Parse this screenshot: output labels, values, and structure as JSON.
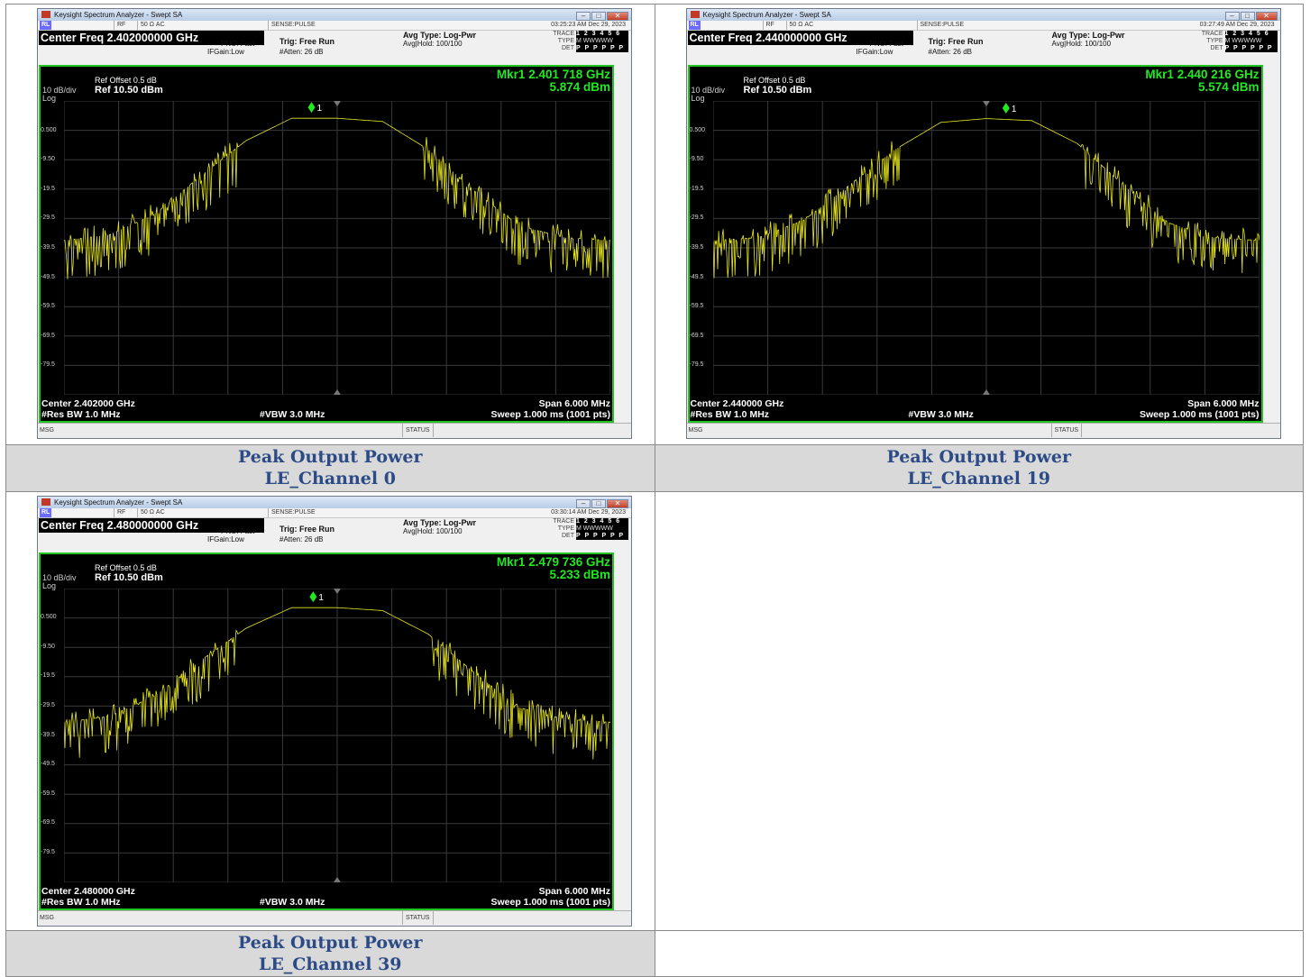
{
  "panels": [
    {
      "window_title": "Keysight Spectrum Analyzer - Swept SA",
      "mode": "RL",
      "input": "RF",
      "impedance": "50 Ω  AC",
      "sense": "SENSE:PULSE",
      "datetime": "03:25:23 AM Dec 29, 2023",
      "center_freq": "Center Freq 2.402000000 GHz",
      "pno": "PNO: Fast",
      "ifgain": "IFGain:Low",
      "trig": "Trig: Free Run",
      "atten": "#Atten: 26 dB",
      "avg_type": "Avg Type: Log-Pwr",
      "avg_hold": "Avg|Hold: 100/100",
      "trace_label": "TRACE",
      "trace_vals": "1 2 3 4 5 6",
      "type_label": "TYPE",
      "type_vals": "M WWWWW",
      "det_label": "DET",
      "det_vals": "P P P P P P",
      "ref_offset": "Ref Offset 0.5 dB",
      "scale": "10 dB/div",
      "scale_type": "Log",
      "ref_level": "Ref 10.50 dBm",
      "marker_freq": "Mkr1 2.401 718 GHz",
      "marker_level": "5.874 dBm",
      "marker_label": "1",
      "y_labels": [
        "0.500",
        "-9.50",
        "-19.5",
        "-29.5",
        "-39.5",
        "-49.5",
        "-59.5",
        "-69.5",
        "-79.5"
      ],
      "center": "Center 2.402000 GHz",
      "rbw": "#Res BW 1.0 MHz",
      "vbw": "#VBW 3.0 MHz",
      "span": "Span 6.000 MHz",
      "sweep": "Sweep  1.000 ms (1001 pts)",
      "msg": "MSG",
      "status": "STATUS",
      "caption_line1": "Peak Output Power",
      "caption_line2": "LE_Channel 0",
      "chart_data": {
        "type": "line",
        "xlabel": "",
        "ylabel": "",
        "x_range_ghz": [
          2.399,
          2.405
        ],
        "y_range_dbm": [
          -89.5,
          10.5
        ],
        "marker": {
          "x": 2.401718,
          "y": 5.874
        },
        "x": [
          2.399,
          2.3995,
          2.4,
          2.4005,
          2.401,
          2.4015,
          2.402,
          2.4025,
          2.403,
          2.4035,
          2.404,
          2.4045,
          2.405
        ],
        "y": [
          -37,
          -35,
          -28,
          -15,
          -3,
          4.6,
          4.6,
          3.5,
          -6,
          -20,
          -32,
          -36,
          -37
        ]
      }
    },
    {
      "window_title": "Keysight Spectrum Analyzer - Swept SA",
      "mode": "RL",
      "input": "RF",
      "impedance": "50 Ω  AC",
      "sense": "SENSE:PULSE",
      "datetime": "03:27:49 AM Dec 29, 2023",
      "center_freq": "Center Freq 2.440000000 GHz",
      "pno": "PNO: Fast",
      "ifgain": "IFGain:Low",
      "trig": "Trig: Free Run",
      "atten": "#Atten: 26 dB",
      "avg_type": "Avg Type: Log-Pwr",
      "avg_hold": "Avg|Hold: 100/100",
      "trace_label": "TRACE",
      "trace_vals": "1 2 3 4 5 6",
      "type_label": "TYPE",
      "type_vals": "M WWWWW",
      "det_label": "DET",
      "det_vals": "P P P P P P",
      "ref_offset": "Ref Offset 0.5 dB",
      "scale": "10 dB/div",
      "scale_type": "Log",
      "ref_level": "Ref 10.50 dBm",
      "marker_freq": "Mkr1 2.440 216 GHz",
      "marker_level": "5.574 dBm",
      "marker_label": "1",
      "y_labels": [
        "0.500",
        "-9.50",
        "-19.5",
        "-29.5",
        "-39.5",
        "-49.5",
        "-59.5",
        "-69.5",
        "-79.5"
      ],
      "center": "Center 2.440000 GHz",
      "rbw": "#Res BW 1.0 MHz",
      "vbw": "#VBW 3.0 MHz",
      "span": "Span 6.000 MHz",
      "sweep": "Sweep  1.000 ms (1001 pts)",
      "msg": "MSG",
      "status": "STATUS",
      "caption_line1": "Peak Output Power",
      "caption_line2": "LE_Channel 19",
      "chart_data": {
        "type": "line",
        "xlabel": "",
        "ylabel": "",
        "x_range_ghz": [
          2.437,
          2.443
        ],
        "y_range_dbm": [
          -89.5,
          10.5
        ],
        "marker": {
          "x": 2.440216,
          "y": 5.574
        },
        "x": [
          2.437,
          2.4375,
          2.438,
          2.4385,
          2.439,
          2.4395,
          2.44,
          2.4405,
          2.441,
          2.4415,
          2.442,
          2.4425,
          2.443
        ],
        "y": [
          -37,
          -36,
          -30,
          -18,
          -6,
          3.2,
          4.5,
          3.8,
          -4,
          -18,
          -31,
          -36,
          -37
        ]
      }
    },
    {
      "window_title": "Keysight Spectrum Analyzer - Swept SA",
      "mode": "RL",
      "input": "RF",
      "impedance": "50 Ω  AC",
      "sense": "SENSE:PULSE",
      "datetime": "03:30:14 AM Dec 29, 2023",
      "center_freq": "Center Freq 2.480000000 GHz",
      "pno": "PNO: Fast",
      "ifgain": "IFGain:Low",
      "trig": "Trig: Free Run",
      "atten": "#Atten: 26 dB",
      "avg_type": "Avg Type: Log-Pwr",
      "avg_hold": "Avg|Hold: 100/100",
      "trace_label": "TRACE",
      "trace_vals": "1 2 3 4 5 6",
      "type_label": "TYPE",
      "type_vals": "M WWWWW",
      "det_label": "DET",
      "det_vals": "P P P P P P",
      "ref_offset": "Ref Offset 0.5 dB",
      "scale": "10 dB/div",
      "scale_type": "Log",
      "ref_level": "Ref 10.50 dBm",
      "marker_freq": "Mkr1 2.479 736 GHz",
      "marker_level": "5.233 dBm",
      "marker_label": "1",
      "y_labels": [
        "0.500",
        "-9.50",
        "-19.5",
        "-29.5",
        "-39.5",
        "-49.5",
        "-59.5",
        "-69.5",
        "-79.5"
      ],
      "center": "Center 2.480000 GHz",
      "rbw": "#Res BW 1.0 MHz",
      "vbw": "#VBW 3.0 MHz",
      "span": "Span 6.000 MHz",
      "sweep": "Sweep  1.000 ms (1001 pts)",
      "msg": "MSG",
      "status": "STATUS",
      "caption_line1": "Peak Output Power",
      "caption_line2": "LE_Channel 39",
      "chart_data": {
        "type": "line",
        "xlabel": "",
        "ylabel": "",
        "x_range_ghz": [
          2.477,
          2.483
        ],
        "y_range_dbm": [
          -89.5,
          10.5
        ],
        "marker": {
          "x": 2.479736,
          "y": 5.233
        },
        "x": [
          2.477,
          2.4775,
          2.478,
          2.4785,
          2.479,
          2.4795,
          2.48,
          2.4805,
          2.481,
          2.4815,
          2.482,
          2.4825,
          2.483
        ],
        "y": [
          -35,
          -33,
          -26,
          -14,
          -3,
          4,
          4,
          3,
          -5,
          -18,
          -30,
          -34,
          -35
        ]
      }
    }
  ]
}
